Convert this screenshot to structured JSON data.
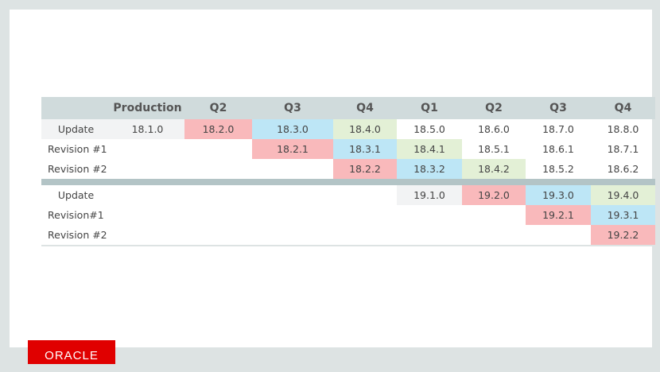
{
  "header": [
    "",
    "Production",
    "Q2",
    "Q3",
    "Q4",
    "Q1",
    "Q2",
    "Q3",
    "Q4"
  ],
  "colors": {
    "pink": "#f9b9bb",
    "blue": "#bde6f6",
    "green": "#e3f0d6",
    "gray": "#f2f3f4",
    "header": "#d0dbdc",
    "separator": "#b3c4c6"
  },
  "groups": [
    {
      "rows": [
        {
          "label": "Update",
          "cells": [
            {
              "v": "18.1.0",
              "c": "gray"
            },
            {
              "v": "18.2.0",
              "c": "pink"
            },
            {
              "v": "18.3.0",
              "c": "blue"
            },
            {
              "v": "18.4.0",
              "c": "green"
            },
            {
              "v": "18.5.0"
            },
            {
              "v": "18.6.0"
            },
            {
              "v": "18.7.0"
            },
            {
              "v": "18.8.0"
            }
          ]
        },
        {
          "label": "Revision #1",
          "cells": [
            {
              "v": ""
            },
            {
              "v": ""
            },
            {
              "v": "18.2.1",
              "c": "pink"
            },
            {
              "v": "18.3.1",
              "c": "blue"
            },
            {
              "v": "18.4.1",
              "c": "green"
            },
            {
              "v": "18.5.1"
            },
            {
              "v": "18.6.1"
            },
            {
              "v": "18.7.1"
            }
          ]
        },
        {
          "label": "Revision #2",
          "cells": [
            {
              "v": ""
            },
            {
              "v": ""
            },
            {
              "v": ""
            },
            {
              "v": "18.2.2",
              "c": "pink"
            },
            {
              "v": "18.3.2",
              "c": "blue"
            },
            {
              "v": "18.4.2",
              "c": "green"
            },
            {
              "v": "18.5.2"
            },
            {
              "v": "18.6.2"
            }
          ]
        }
      ]
    },
    {
      "rows": [
        {
          "label": "Update",
          "cells": [
            {
              "v": ""
            },
            {
              "v": ""
            },
            {
              "v": ""
            },
            {
              "v": ""
            },
            {
              "v": "19.1.0",
              "c": "gray"
            },
            {
              "v": "19.2.0",
              "c": "pink"
            },
            {
              "v": "19.3.0",
              "c": "blue"
            },
            {
              "v": "19.4.0",
              "c": "green"
            }
          ]
        },
        {
          "label": "Revision#1",
          "cells": [
            {
              "v": ""
            },
            {
              "v": ""
            },
            {
              "v": ""
            },
            {
              "v": ""
            },
            {
              "v": ""
            },
            {
              "v": ""
            },
            {
              "v": "19.2.1",
              "c": "pink"
            },
            {
              "v": "19.3.1",
              "c": "blue"
            }
          ]
        },
        {
          "label": "Revision #2",
          "cells": [
            {
              "v": ""
            },
            {
              "v": ""
            },
            {
              "v": ""
            },
            {
              "v": ""
            },
            {
              "v": ""
            },
            {
              "v": ""
            },
            {
              "v": ""
            },
            {
              "v": "19.2.2",
              "c": "pink"
            }
          ]
        }
      ]
    }
  ],
  "logo": "ORACLE"
}
